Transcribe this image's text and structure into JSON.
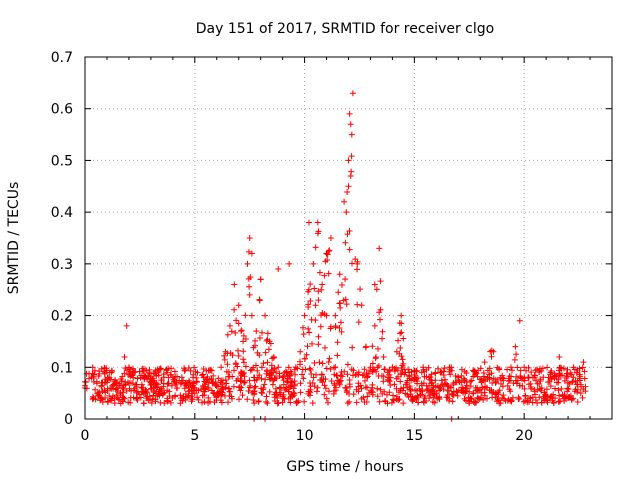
{
  "chart_data": {
    "type": "scatter",
    "title": "Day 151 of 2017, SRMTID for receiver clgo",
    "xlabel": "GPS time / hours",
    "ylabel": "SRMTID / TECUs",
    "xlim": [
      0,
      24
    ],
    "ylim": [
      0,
      0.7
    ],
    "xticks": [
      "0",
      "5",
      "10",
      "15",
      "20"
    ],
    "xtick_values": [
      0,
      5,
      10,
      15,
      20
    ],
    "yticks": [
      "0",
      "0.1",
      "0.2",
      "0.3",
      "0.4",
      "0.5",
      "0.6",
      "0.7"
    ],
    "ytick_values": [
      0,
      0.1,
      0.2,
      0.3,
      0.4,
      0.5,
      0.6,
      0.7
    ],
    "grid": true,
    "marker": "+",
    "color": "#ff0000",
    "series": [
      {
        "name": "SRMTID",
        "x": [
          0.0,
          0.3,
          0.6,
          0.9,
          1.2,
          1.5,
          1.8,
          1.9,
          2.0,
          2.2,
          2.6,
          3.0,
          3.4,
          3.8,
          4.2,
          4.6,
          5.0,
          5.4,
          5.8,
          6.2,
          6.4,
          6.6,
          6.8,
          7.0,
          7.2,
          7.4,
          7.5,
          7.6,
          7.8,
          8.0,
          8.2,
          8.4,
          8.6,
          8.8,
          9.0,
          9.2,
          9.4,
          9.6,
          9.8,
          10.0,
          10.2,
          10.4,
          10.6,
          10.8,
          11.0,
          11.2,
          11.4,
          11.6,
          11.8,
          12.0,
          12.1,
          12.2,
          12.4,
          12.6,
          12.8,
          13.0,
          13.2,
          13.4,
          13.6,
          13.8,
          14.0,
          14.2,
          14.4,
          14.6,
          14.8,
          15.0,
          15.4,
          15.8,
          16.2,
          16.6,
          17.0,
          17.4,
          17.8,
          18.2,
          18.6,
          19.0,
          19.4,
          19.6,
          19.8,
          20.0,
          20.4,
          20.8,
          21.2,
          21.6,
          22.0,
          22.4,
          22.7,
          12.05,
          12.1,
          12.15,
          12.0,
          11.9,
          10.2,
          9.3,
          13.2,
          7.6,
          7.5,
          8.0,
          8.8,
          7.7,
          8.2,
          10.5,
          11.0,
          16.7
        ],
        "y": [
          0.06,
          0.08,
          0.05,
          0.07,
          0.09,
          0.06,
          0.12,
          0.18,
          0.1,
          0.08,
          0.06,
          0.07,
          0.05,
          0.08,
          0.06,
          0.07,
          0.06,
          0.08,
          0.07,
          0.1,
          0.13,
          0.18,
          0.26,
          0.22,
          0.15,
          0.3,
          0.35,
          0.2,
          0.17,
          0.27,
          0.2,
          0.15,
          0.12,
          0.1,
          0.08,
          0.09,
          0.07,
          0.1,
          0.13,
          0.2,
          0.25,
          0.3,
          0.38,
          0.26,
          0.32,
          0.35,
          0.2,
          0.28,
          0.42,
          0.5,
          0.57,
          0.63,
          0.3,
          0.22,
          0.14,
          0.1,
          0.18,
          0.33,
          0.12,
          0.08,
          0.1,
          0.13,
          0.2,
          0.09,
          0.06,
          0.08,
          0.1,
          0.07,
          0.09,
          0.1,
          0.08,
          0.06,
          0.09,
          0.11,
          0.13,
          0.08,
          0.1,
          0.14,
          0.19,
          0.1,
          0.08,
          0.06,
          0.09,
          0.12,
          0.07,
          0.09,
          0.11,
          0.59,
          0.47,
          0.55,
          0.45,
          0.4,
          0.38,
          0.3,
          0.26,
          0.32,
          0.24,
          0.27,
          0.29,
          0.0,
          0.0,
          0.22,
          0.2,
          0.0
        ],
        "baseline_band": "dense scatter between 0.02 and 0.12 across all hours"
      }
    ]
  }
}
